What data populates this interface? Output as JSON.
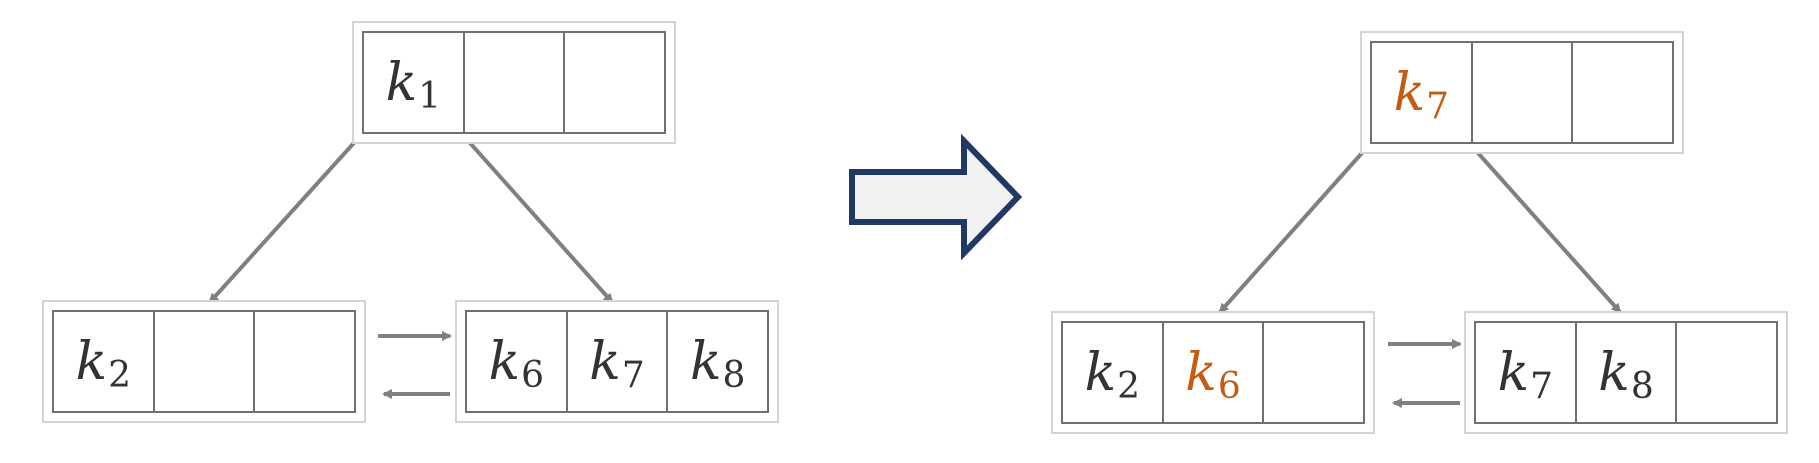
{
  "colors": {
    "node_border": "#707070",
    "node_outer_border": "#d4d4d4",
    "key_text": "#333333",
    "highlight_key": "#c55a11",
    "edge": "#808080",
    "transition_arrow_stroke": "#1f3864",
    "transition_arrow_fill": "#f2f2f2"
  },
  "before": {
    "root": {
      "slots": [
        {
          "base": "k",
          "sub": "1"
        },
        null,
        null
      ]
    },
    "left_leaf": {
      "slots": [
        {
          "base": "k",
          "sub": "2"
        },
        null,
        null
      ]
    },
    "right_leaf": {
      "slots": [
        {
          "base": "k",
          "sub": "6"
        },
        {
          "base": "k",
          "sub": "7"
        },
        {
          "base": "k",
          "sub": "8"
        }
      ]
    }
  },
  "after": {
    "root": {
      "slots": [
        {
          "base": "k",
          "sub": "7",
          "highlight": true
        },
        null,
        null
      ]
    },
    "left_leaf": {
      "slots": [
        {
          "base": "k",
          "sub": "2"
        },
        {
          "base": "k",
          "sub": "6",
          "highlight": true
        },
        null
      ]
    },
    "right_leaf": {
      "slots": [
        {
          "base": "k",
          "sub": "7"
        },
        {
          "base": "k",
          "sub": "8"
        },
        null
      ]
    }
  },
  "transition_arrow_icon": "block-right-arrow-icon"
}
